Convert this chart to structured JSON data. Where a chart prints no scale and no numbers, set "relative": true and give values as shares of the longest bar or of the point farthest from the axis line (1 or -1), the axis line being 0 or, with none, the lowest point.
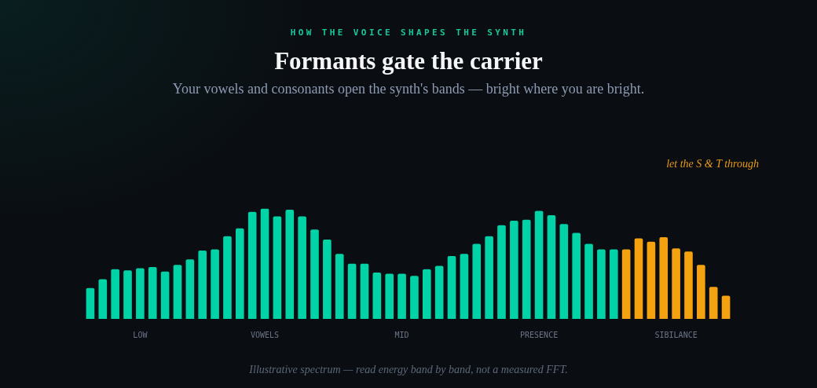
{
  "chart_data": {
    "type": "bar",
    "title": "Formants gate the carrier",
    "subtitle": "Your vowels and consonants open the synth's bands — bright where you are bright.",
    "categories": [
      null,
      null,
      null,
      null,
      "LOW",
      null,
      null,
      null,
      null,
      null,
      null,
      null,
      null,
      null,
      "VOWELS",
      null,
      null,
      null,
      null,
      null,
      null,
      null,
      null,
      null,
      null,
      "MID",
      null,
      null,
      null,
      null,
      null,
      null,
      null,
      null,
      null,
      null,
      "PRESENCE",
      null,
      null,
      null,
      null,
      null,
      null,
      null,
      null,
      null,
      null,
      "SIBILANCE",
      null,
      null,
      null,
      null
    ],
    "values": [
      0.28,
      0.36,
      0.45,
      0.44,
      0.46,
      0.47,
      0.43,
      0.49,
      0.54,
      0.62,
      0.63,
      0.75,
      0.82,
      0.97,
      1,
      0.93,
      0.99,
      0.93,
      0.81,
      0.72,
      0.59,
      0.5,
      0.5,
      0.42,
      0.41,
      0.41,
      0.39,
      0.45,
      0.48,
      0.57,
      0.59,
      0.68,
      0.75,
      0.85,
      0.89,
      0.9,
      0.98,
      0.94,
      0.86,
      0.78,
      0.68,
      0.63,
      0.63,
      0.63,
      0.73,
      0.7,
      0.74,
      0.64,
      0.61,
      0.49,
      0.29,
      0.21
    ],
    "colors": [
      "#02d3a6",
      "#02d3a6",
      "#02d3a6",
      "#02d3a6",
      "#02d3a6",
      "#02d3a6",
      "#02d3a6",
      "#02d3a6",
      "#02d3a6",
      "#02d3a6",
      "#02d3a6",
      "#02d3a6",
      "#02d3a6",
      "#02d3a6",
      "#02d3a6",
      "#02d3a6",
      "#02d3a6",
      "#02d3a6",
      "#02d3a6",
      "#02d3a6",
      "#02d3a6",
      "#02d3a6",
      "#02d3a6",
      "#02d3a6",
      "#02d3a6",
      "#02d3a6",
      "#02d3a6",
      "#02d3a6",
      "#02d3a6",
      "#02d3a6",
      "#02d3a6",
      "#02d3a6",
      "#02d3a6",
      "#02d3a6",
      "#02d3a6",
      "#02d3a6",
      "#02d3a6",
      "#02d3a6",
      "#02d3a6",
      "#02d3a6",
      "#02d3a6",
      "#02d3a6",
      "#02d3a6",
      "#f4a20f",
      "#f4a20f",
      "#f4a20f",
      "#f4a20f",
      "#f4a20f",
      "#f4a20f",
      "#f4a20f",
      "#f4a20f",
      "#f4a20f"
    ],
    "relative": true,
    "annotations": [
      "HOW THE VOICE SHAPES THE SYNTH",
      "let the S & T through",
      "Illustrative spectrum — read energy band by band, not a measured FFT."
    ]
  }
}
